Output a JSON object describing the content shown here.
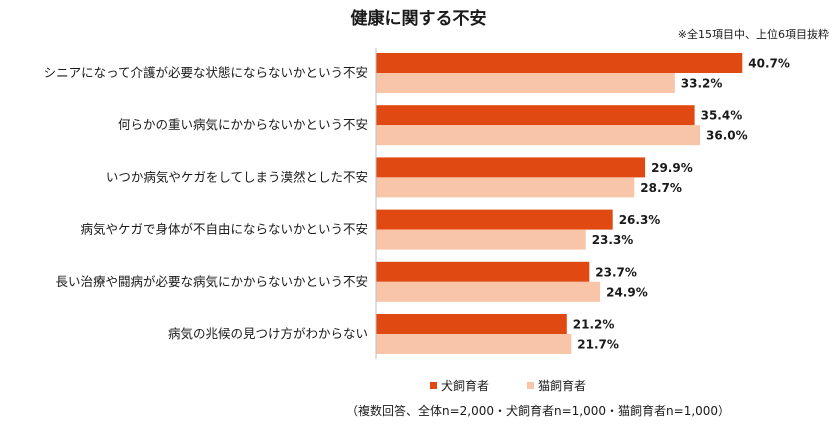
{
  "chart_data": {
    "type": "bar",
    "orientation": "horizontal",
    "title": "健康に関する不安",
    "note": "※全15項目中、上位6項目抜粋",
    "categories": [
      "シニアになって介護が必要な状態にならないかという不安",
      "何らかの重い病気にかからないかという不安",
      "いつか病気やケガをしてしまう漠然とした不安",
      "病気やケガで身体が不自由にならないかという不安",
      "長い治療や闘病が必要な病気にかからないかという不安",
      "病気の兆候の見つけ方がわからない"
    ],
    "series": [
      {
        "name": "犬飼育者",
        "color": "#e04a12",
        "values": [
          40.7,
          35.4,
          29.9,
          26.3,
          23.7,
          21.2
        ],
        "labels": [
          "40.7%",
          "35.4%",
          "29.9%",
          "26.3%",
          "23.7%",
          "21.2%"
        ]
      },
      {
        "name": "猫飼育者",
        "color": "#f8c5a8",
        "values": [
          33.2,
          36.0,
          28.7,
          23.3,
          24.9,
          21.7
        ],
        "labels": [
          "33.2%",
          "36.0%",
          "28.7%",
          "23.3%",
          "24.9%",
          "21.7%"
        ]
      }
    ],
    "xlim": [
      0,
      45
    ],
    "footnote": "（複数回答、全体n=2,000・犬飼育者n=1,000・猫飼育者n=1,000）"
  }
}
